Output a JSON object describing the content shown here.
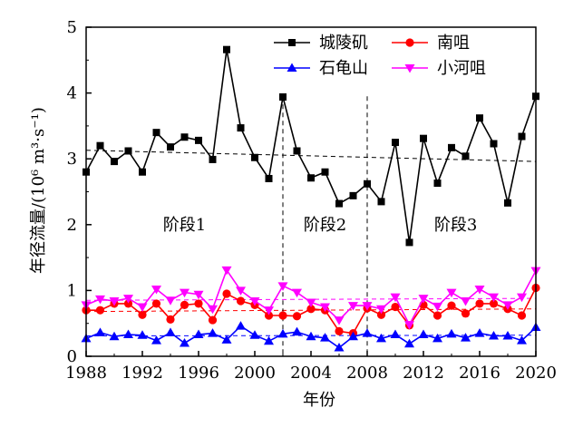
{
  "chart_data": {
    "type": "line",
    "ylabel": "年径流量/(10⁶ m³·s⁻¹)",
    "xlabel": "年份",
    "xlim": [
      1988,
      2020
    ],
    "ylim": [
      0,
      5
    ],
    "x_ticks": [
      "1988",
      "1992",
      "1996",
      "2000",
      "2004",
      "2008",
      "2012",
      "2016",
      "2020"
    ],
    "y_ticks": [
      "0",
      "1",
      "2",
      "3",
      "4",
      "5"
    ],
    "x": [
      1988,
      1989,
      1990,
      1991,
      1992,
      1993,
      1994,
      1995,
      1996,
      1997,
      1998,
      1999,
      2000,
      2001,
      2002,
      2003,
      2004,
      2005,
      2006,
      2007,
      2008,
      2009,
      2010,
      2011,
      2012,
      2013,
      2014,
      2015,
      2016,
      2017,
      2018,
      2019,
      2020
    ],
    "series": [
      {
        "name": "城陵矶",
        "color": "#000000",
        "marker": "square",
        "values": [
          2.8,
          3.2,
          2.96,
          3.12,
          2.8,
          3.4,
          3.18,
          3.33,
          3.28,
          2.99,
          4.66,
          3.47,
          3.02,
          2.7,
          3.94,
          3.12,
          2.71,
          2.8,
          2.32,
          2.44,
          2.62,
          2.35,
          3.25,
          1.73,
          3.31,
          2.63,
          3.17,
          3.04,
          3.62,
          3.23,
          2.33,
          3.34,
          3.95
        ]
      },
      {
        "name": "南咀",
        "color": "#ff0000",
        "marker": "circle",
        "values": [
          0.7,
          0.7,
          0.8,
          0.8,
          0.63,
          0.8,
          0.56,
          0.78,
          0.8,
          0.55,
          0.95,
          0.84,
          0.78,
          0.62,
          0.62,
          0.61,
          0.72,
          0.7,
          0.38,
          0.35,
          0.73,
          0.63,
          0.75,
          0.47,
          0.78,
          0.62,
          0.77,
          0.65,
          0.8,
          0.8,
          0.72,
          0.62,
          1.04
        ]
      },
      {
        "name": "石龟山",
        "color": "#0000ff",
        "marker": "triangle-up",
        "values": [
          0.27,
          0.36,
          0.3,
          0.33,
          0.32,
          0.24,
          0.36,
          0.2,
          0.33,
          0.35,
          0.25,
          0.46,
          0.32,
          0.23,
          0.34,
          0.37,
          0.3,
          0.28,
          0.13,
          0.3,
          0.35,
          0.27,
          0.33,
          0.19,
          0.33,
          0.27,
          0.34,
          0.28,
          0.35,
          0.31,
          0.31,
          0.24,
          0.44
        ]
      },
      {
        "name": "小河咀",
        "color": "#ff00ff",
        "marker": "triangle-down",
        "values": [
          0.78,
          0.87,
          0.84,
          0.88,
          0.75,
          1.02,
          0.85,
          0.97,
          0.94,
          0.72,
          1.31,
          1.0,
          0.84,
          0.7,
          1.07,
          0.97,
          0.82,
          0.75,
          0.55,
          0.77,
          0.77,
          0.72,
          0.9,
          0.48,
          0.88,
          0.76,
          0.97,
          0.84,
          1.02,
          0.9,
          0.78,
          0.9,
          1.3
        ]
      }
    ],
    "trend_lines": [
      {
        "series": "城陵矶",
        "from": [
          1988,
          3.13
        ],
        "to": [
          2020,
          2.96
        ]
      },
      {
        "series": "南咀",
        "from": [
          1988,
          0.68
        ],
        "to": [
          2020,
          0.72
        ]
      },
      {
        "series": "石龟山",
        "from": [
          1988,
          0.31
        ],
        "to": [
          2020,
          0.32
        ]
      },
      {
        "series": "小河咀",
        "from": [
          1988,
          0.85
        ],
        "to": [
          2020,
          0.88
        ]
      }
    ],
    "stage_dividers": [
      2002,
      2008
    ],
    "stage_labels": [
      {
        "text": "阶段1",
        "x": 1995,
        "y": 2.0
      },
      {
        "text": "阶段2",
        "x": 2005,
        "y": 2.0
      },
      {
        "text": "阶段3",
        "x": 2014.3,
        "y": 2.0
      }
    ],
    "legend_position": "top"
  }
}
